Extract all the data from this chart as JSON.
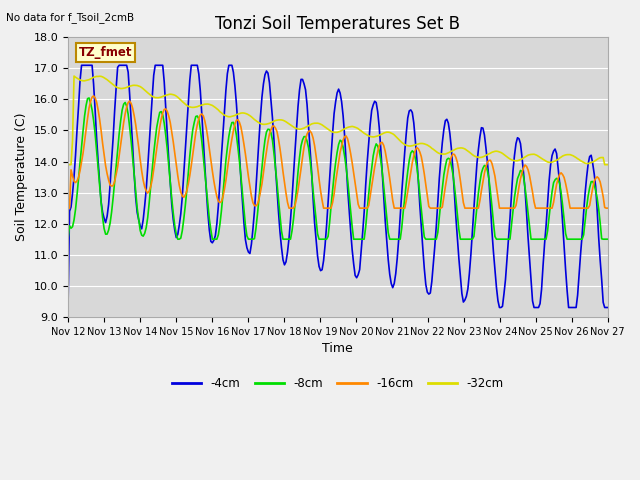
{
  "title": "Tonzi Soil Temperatures Set B",
  "no_data_text": "No data for f_Tsoil_2cmB",
  "legend_box_text": "TZ_fmet",
  "xlabel": "Time",
  "ylabel": "Soil Temperature (C)",
  "ylim": [
    9.0,
    18.0
  ],
  "yticks": [
    9.0,
    10.0,
    11.0,
    12.0,
    13.0,
    14.0,
    15.0,
    16.0,
    17.0,
    18.0
  ],
  "xtick_labels": [
    "Nov 12",
    "Nov 13",
    "Nov 14",
    "Nov 15",
    "Nov 16",
    "Nov 17",
    "Nov 18",
    "Nov 19",
    "Nov 20",
    "Nov 21",
    "Nov 22",
    "Nov 23",
    "Nov 24",
    "Nov 25",
    "Nov 26",
    "Nov 27"
  ],
  "colors": {
    "4cm": "#0000dd",
    "8cm": "#00dd00",
    "16cm": "#ff8800",
    "32cm": "#dddd00"
  },
  "legend_labels": [
    "-4cm",
    "-8cm",
    "-16cm",
    "-32cm"
  ],
  "legend_colors": [
    "#0000dd",
    "#00dd00",
    "#ff8800",
    "#dddd00"
  ],
  "fig_bg": "#f0f0f0",
  "plot_bg": "#d8d8d8",
  "grid_color": "#ffffff",
  "title_fontsize": 12,
  "label_fontsize": 9,
  "tick_fontsize": 8
}
